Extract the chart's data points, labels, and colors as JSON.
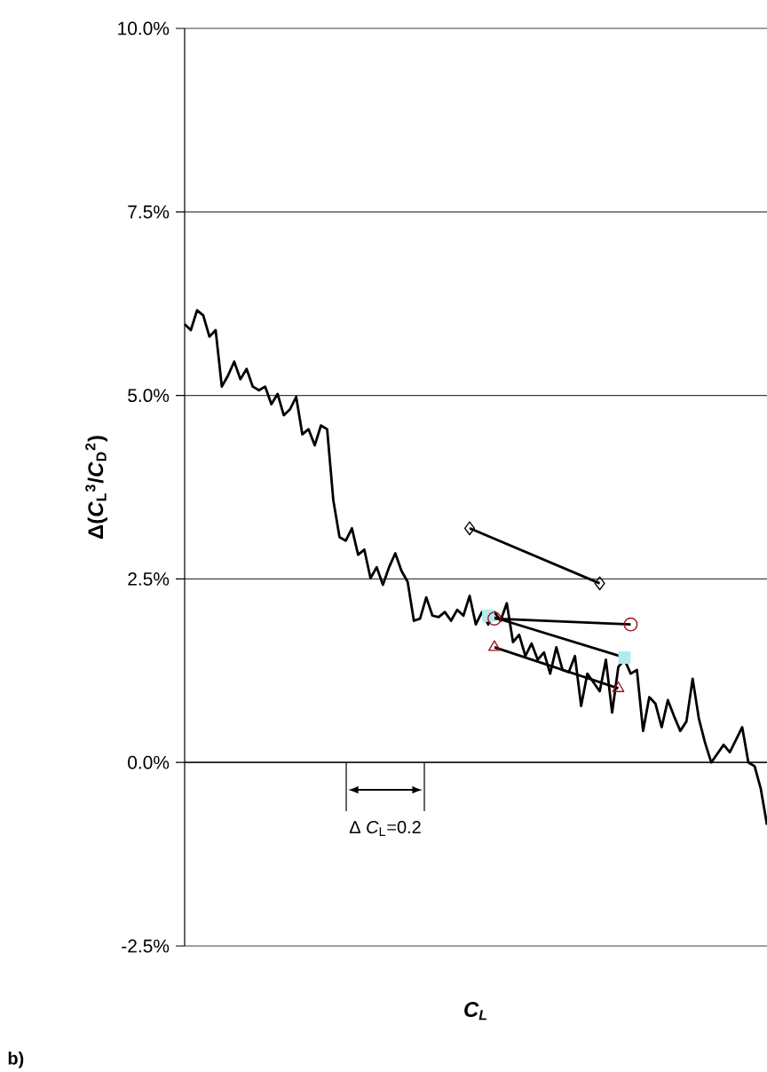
{
  "chart_data": {
    "type": "line",
    "xlabel": "C$_{L}$",
    "ylabel": "Δ(*C*$_{L}$$^{3}$/*C*$_{D}$$^{2}$)",
    "categories": [
      null,
      null,
      null,
      null,
      null,
      null,
      null,
      null,
      null,
      null,
      null,
      null,
      null,
      null,
      null,
      null,
      null,
      null,
      null,
      null,
      null,
      null,
      null,
      null,
      null,
      null,
      null,
      null,
      null,
      null,
      null,
      null,
      null,
      null,
      null,
      null,
      null,
      null,
      null,
      null,
      null,
      null,
      null,
      null,
      null,
      null,
      null,
      null,
      null,
      null,
      null,
      null,
      null,
      null,
      null,
      null,
      null,
      null,
      null,
      null,
      null,
      null,
      null,
      null,
      null,
      null,
      null,
      null,
      null,
      null,
      null,
      null,
      null,
      null,
      null,
      null,
      null,
      null,
      null,
      null,
      null,
      null,
      null,
      null,
      null,
      null,
      null,
      null,
      null,
      null,
      null,
      null,
      null,
      null,
      null
    ],
    "ylim": [
      -2.5,
      10
    ],
    "yticks": [
      {
        "value": -2.5,
        "label": "-2.5%"
      },
      {
        "value": 0,
        "label": "0.0%"
      },
      {
        "value": 2.5,
        "label": "2.5%"
      },
      {
        "value": 5,
        "label": "5.0%"
      },
      {
        "value": 7.5,
        "label": "7.5%"
      },
      {
        "value": 10,
        "label": "10.0%"
      }
    ],
    "grid": "y",
    "series": [
      {
        "color": "#000000",
        "marker": "none",
        "values": [
          5.97,
          5.89,
          6.16,
          6.09,
          5.8,
          5.89,
          5.12,
          5.27,
          5.46,
          5.22,
          5.36,
          5.12,
          5.07,
          5.12,
          4.88,
          5.02,
          4.73,
          4.81,
          4.98,
          4.47,
          4.54,
          4.32,
          4.59,
          4.54,
          3.57,
          3.07,
          3.02,
          3.19,
          2.83,
          2.9,
          2.51,
          2.66,
          2.42,
          2.66,
          2.85,
          2.61,
          2.46,
          1.93,
          1.96,
          2.25,
          2.0,
          1.98,
          2.05,
          1.93,
          2.08,
          2.0,
          2.27,
          1.88,
          2.05,
          1.88,
          2.05,
          1.93,
          2.17,
          1.64,
          1.74,
          1.45,
          1.62,
          1.4,
          1.5,
          1.21,
          1.57,
          1.26,
          1.23,
          1.45,
          0.77,
          1.21,
          1.09,
          0.97,
          1.4,
          0.68,
          1.3,
          1.4,
          1.21,
          1.26,
          0.43,
          0.89,
          0.8,
          0.48,
          0.85,
          0.63,
          0.43,
          0.56,
          1.14,
          0.6,
          0.27,
          0.0,
          0.12,
          0.24,
          0.14,
          0.31,
          0.48,
          0.0,
          -0.05,
          -0.36,
          -0.85
        ]
      },
      {
        "color": "#000000",
        "marker": "diamond",
        "values": [
          null,
          null,
          null,
          null,
          null,
          null,
          null,
          null,
          null,
          null,
          null,
          null,
          null,
          null,
          null,
          null,
          null,
          null,
          null,
          null,
          null,
          null,
          null,
          null,
          null,
          null,
          null,
          null,
          null,
          null,
          null,
          null,
          null,
          null,
          null,
          null,
          null,
          null,
          null,
          null,
          null,
          null,
          null,
          null,
          null,
          null,
          3.19,
          null,
          null,
          null,
          null,
          null,
          null,
          null,
          null,
          null,
          null,
          null,
          null,
          null,
          null,
          null,
          null,
          null,
          null,
          null,
          null,
          2.44,
          null,
          null,
          null,
          null,
          null,
          null,
          null,
          null,
          null,
          null,
          null,
          null,
          null,
          null,
          null,
          null,
          null,
          null,
          null,
          null,
          null,
          null,
          null,
          null,
          null,
          null,
          null
        ]
      },
      {
        "color": "#b0ecec",
        "marker": "square",
        "values": [
          null,
          null,
          null,
          null,
          null,
          null,
          null,
          null,
          null,
          null,
          null,
          null,
          null,
          null,
          null,
          null,
          null,
          null,
          null,
          null,
          null,
          null,
          null,
          null,
          null,
          null,
          null,
          null,
          null,
          null,
          null,
          null,
          null,
          null,
          null,
          null,
          null,
          null,
          null,
          null,
          null,
          null,
          null,
          null,
          null,
          null,
          null,
          null,
          null,
          2.0,
          null,
          null,
          null,
          null,
          null,
          null,
          null,
          null,
          null,
          null,
          null,
          null,
          null,
          null,
          null,
          null,
          null,
          null,
          null,
          null,
          null,
          1.43,
          null,
          null,
          null,
          null,
          null,
          null,
          null,
          null,
          null,
          null,
          null,
          null,
          null,
          null,
          null,
          null,
          null,
          null,
          null,
          null,
          null,
          null,
          null
        ]
      },
      {
        "color": "#a01020",
        "marker": "circle",
        "values": [
          null,
          null,
          null,
          null,
          null,
          null,
          null,
          null,
          null,
          null,
          null,
          null,
          null,
          null,
          null,
          null,
          null,
          null,
          null,
          null,
          null,
          null,
          null,
          null,
          null,
          null,
          null,
          null,
          null,
          null,
          null,
          null,
          null,
          null,
          null,
          null,
          null,
          null,
          null,
          null,
          null,
          null,
          null,
          null,
          null,
          null,
          null,
          null,
          null,
          null,
          1.96,
          null,
          null,
          null,
          null,
          null,
          null,
          null,
          null,
          null,
          null,
          null,
          null,
          null,
          null,
          null,
          null,
          null,
          null,
          null,
          null,
          null,
          1.88,
          null,
          null,
          null,
          null,
          null,
          null,
          null,
          null,
          null,
          null,
          null,
          null,
          null,
          null,
          null,
          null,
          null,
          null,
          null,
          null,
          null,
          null
        ]
      },
      {
        "color": "#a01020",
        "marker": "triangle",
        "values": [
          null,
          null,
          null,
          null,
          null,
          null,
          null,
          null,
          null,
          null,
          null,
          null,
          null,
          null,
          null,
          null,
          null,
          null,
          null,
          null,
          null,
          null,
          null,
          null,
          null,
          null,
          null,
          null,
          null,
          null,
          null,
          null,
          null,
          null,
          null,
          null,
          null,
          null,
          null,
          null,
          null,
          null,
          null,
          null,
          null,
          null,
          null,
          null,
          null,
          null,
          1.57,
          null,
          null,
          null,
          null,
          null,
          null,
          null,
          null,
          null,
          null,
          null,
          null,
          null,
          null,
          null,
          null,
          null,
          null,
          null,
          1.01,
          null,
          null,
          null,
          null,
          null,
          null,
          null,
          null,
          null,
          null,
          null,
          null,
          null,
          null,
          null,
          null,
          null,
          null,
          null,
          null,
          null,
          null,
          null,
          null
        ]
      }
    ],
    "annotations": [
      "Δ *C*$_{L}$=0.2",
      "b)"
    ]
  }
}
